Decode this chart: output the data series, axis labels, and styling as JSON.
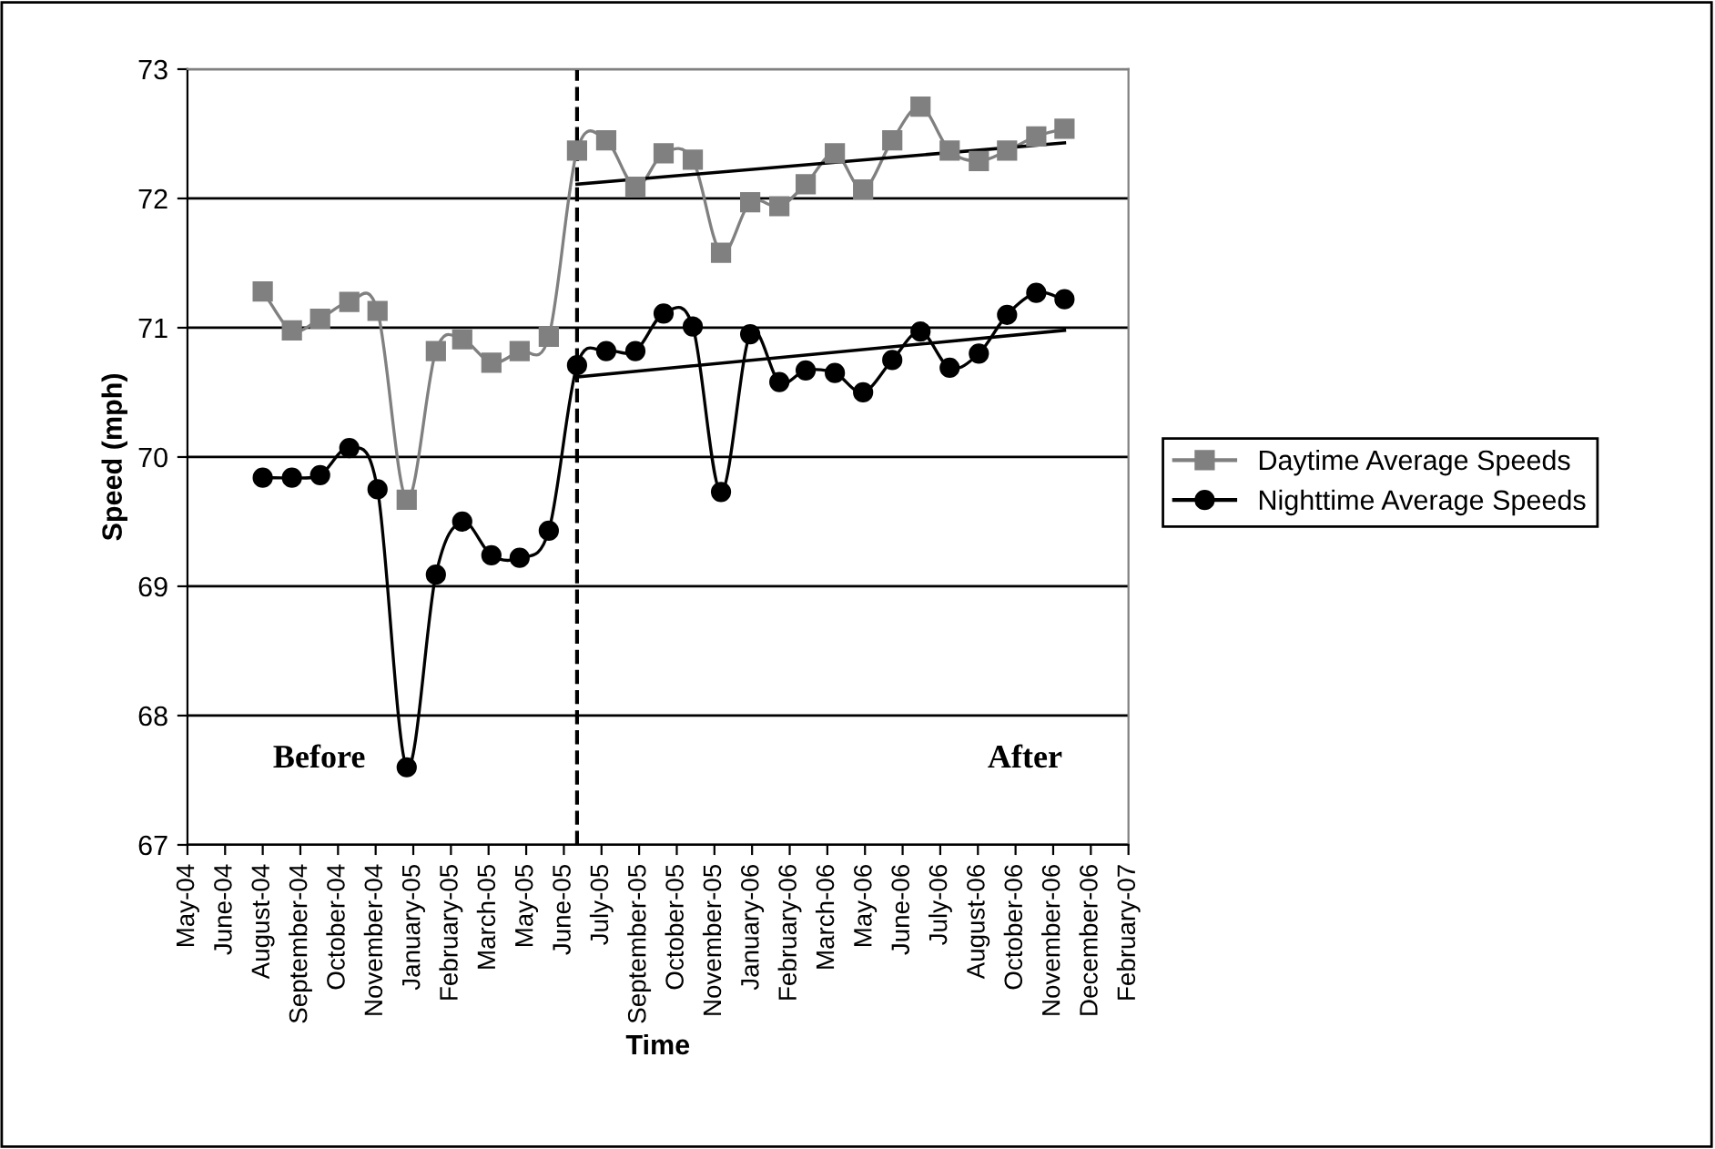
{
  "chart_data": {
    "type": "line",
    "xlabel": "Time",
    "ylabel": "Speed (mph)",
    "xlim": [
      "2004-05-13",
      "2007-02-07"
    ],
    "ylim": [
      67,
      73
    ],
    "xticks": [
      {
        "value": "2004-05-13",
        "label": "May-04"
      },
      {
        "value": "2004-06-22",
        "label": "June-04"
      },
      {
        "value": "2004-08-01",
        "label": "August-04"
      },
      {
        "value": "2004-09-10",
        "label": "September-04"
      },
      {
        "value": "2004-10-20",
        "label": "October-04"
      },
      {
        "value": "2004-11-29",
        "label": "November-04"
      },
      {
        "value": "2005-01-08",
        "label": "January-05"
      },
      {
        "value": "2005-02-17",
        "label": "February-05"
      },
      {
        "value": "2005-03-29",
        "label": "March-05"
      },
      {
        "value": "2005-05-08",
        "label": "May-05"
      },
      {
        "value": "2005-06-17",
        "label": "June-05"
      },
      {
        "value": "2005-07-27",
        "label": "July-05"
      },
      {
        "value": "2005-09-05",
        "label": "September-05"
      },
      {
        "value": "2005-10-15",
        "label": "October-05"
      },
      {
        "value": "2005-11-24",
        "label": "November-05"
      },
      {
        "value": "2006-01-03",
        "label": "January-06"
      },
      {
        "value": "2006-02-12",
        "label": "February-06"
      },
      {
        "value": "2006-03-24",
        "label": "March-06"
      },
      {
        "value": "2006-05-03",
        "label": "May-06"
      },
      {
        "value": "2006-06-12",
        "label": "June-06"
      },
      {
        "value": "2006-07-22",
        "label": "July-06"
      },
      {
        "value": "2006-08-31",
        "label": "August-06"
      },
      {
        "value": "2006-10-10",
        "label": "October-06"
      },
      {
        "value": "2006-11-19",
        "label": "November-06"
      },
      {
        "value": "2006-12-29",
        "label": "December-06"
      },
      {
        "value": "2007-02-07",
        "label": "February-07"
      }
    ],
    "yticks": [
      67,
      68,
      69,
      70,
      71,
      72,
      73
    ],
    "x": [
      "2004-08-01",
      "2004-09-01",
      "2004-10-01",
      "2004-11-01",
      "2004-12-01",
      "2005-01-01",
      "2005-02-01",
      "2005-03-01",
      "2005-04-01",
      "2005-05-01",
      "2005-06-01",
      "2005-07-01",
      "2005-08-01",
      "2005-09-01",
      "2005-10-01",
      "2005-11-01",
      "2005-12-01",
      "2006-01-01",
      "2006-02-01",
      "2006-03-01",
      "2006-04-01",
      "2006-05-01",
      "2006-06-01",
      "2006-07-01",
      "2006-08-01",
      "2006-09-01",
      "2006-10-01",
      "2006-11-01",
      "2006-12-01"
    ],
    "series": [
      {
        "name": "Daytime Average Speeds",
        "color": "#808080",
        "marker": "square",
        "values": [
          71.28,
          70.98,
          71.07,
          71.2,
          71.13,
          69.67,
          70.82,
          70.91,
          70.73,
          70.82,
          70.93,
          72.37,
          72.45,
          72.09,
          72.35,
          72.3,
          71.58,
          71.97,
          71.94,
          72.11,
          72.35,
          72.07,
          72.45,
          72.71,
          72.37,
          72.29,
          72.37,
          72.48,
          72.54
        ]
      },
      {
        "name": "Nighttime Average Speeds",
        "color": "#000000",
        "marker": "circle",
        "values": [
          69.84,
          69.84,
          69.86,
          70.07,
          69.75,
          67.6,
          69.09,
          69.5,
          69.24,
          69.22,
          69.43,
          70.71,
          70.82,
          70.82,
          71.11,
          71.01,
          69.73,
          70.95,
          70.58,
          70.67,
          70.65,
          70.5,
          70.75,
          70.97,
          70.69,
          70.8,
          71.1,
          71.27,
          71.22
        ]
      },
      {
        "color": "#000000",
        "marker": "none",
        "x": [
          "2005-07-01",
          "2006-12-01"
        ],
        "values": [
          72.11,
          72.43
        ]
      },
      {
        "color": "#000000",
        "marker": "none",
        "x": [
          "2005-07-01",
          "2006-12-01"
        ],
        "values": [
          70.62,
          70.98
        ]
      }
    ],
    "ref_lines": [
      {
        "axis": "x",
        "value": "2005-07-01",
        "line_style": "dashed",
        "color": "#000000"
      }
    ],
    "annotations": [
      "Before",
      "After"
    ],
    "grid": "y",
    "legend": "right",
    "line_style": "solid"
  }
}
